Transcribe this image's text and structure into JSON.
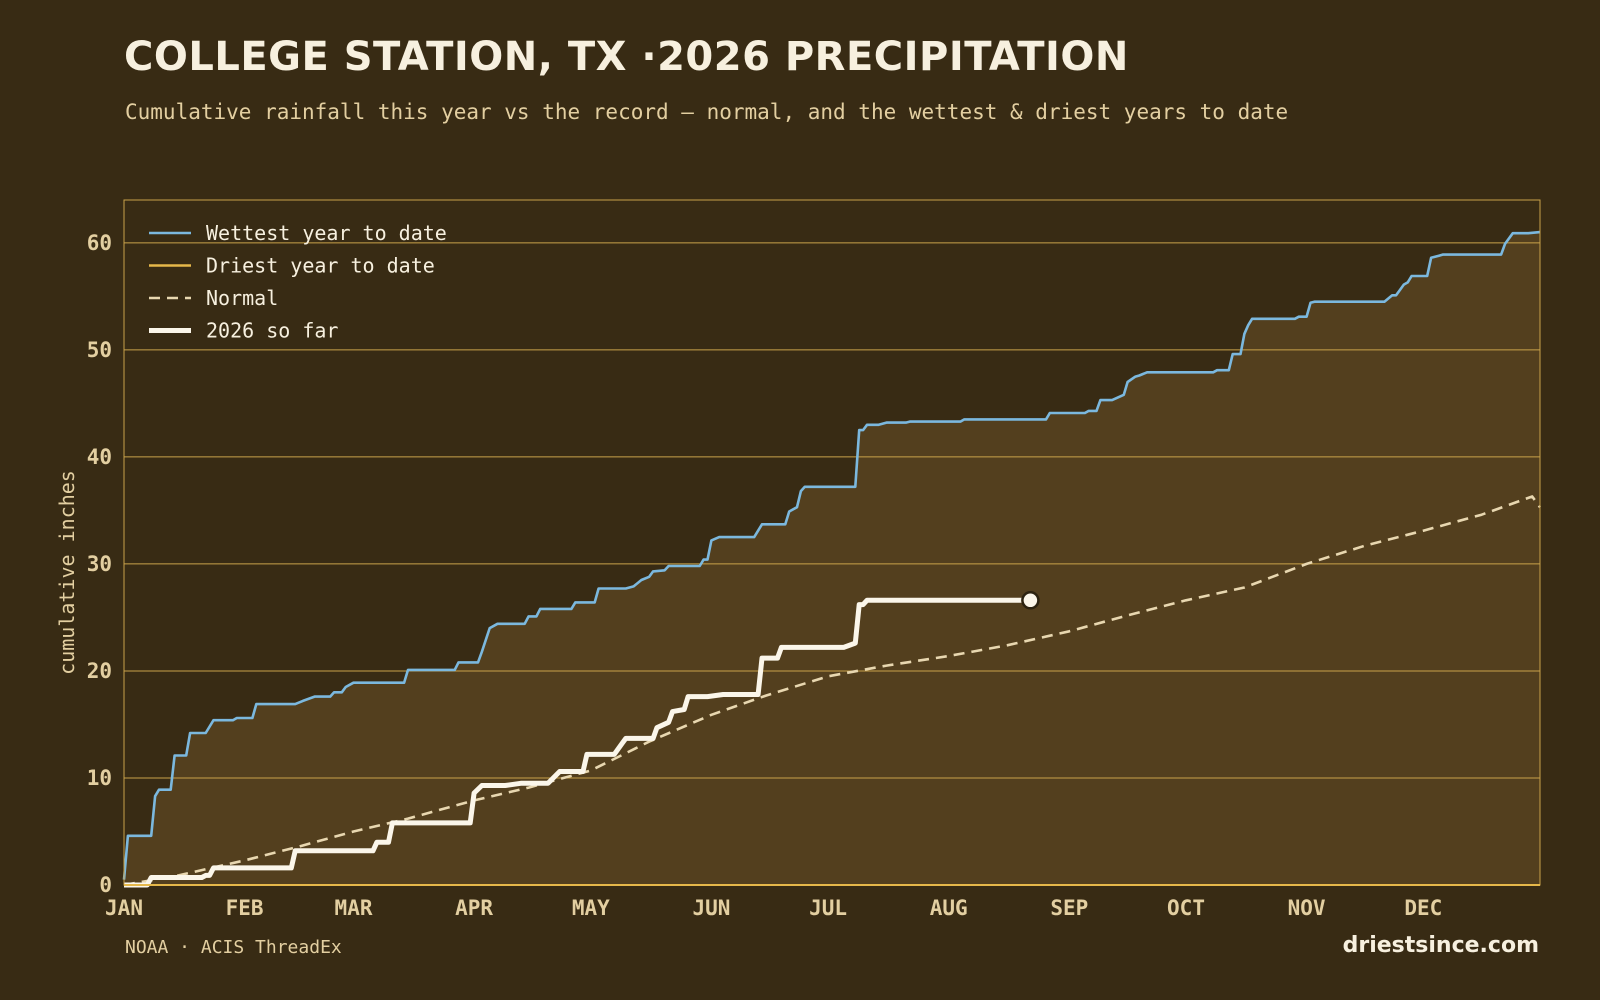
{
  "header": {
    "title": "COLLEGE STATION, TX ·2026 PRECIPITATION",
    "subtitle": "Cumulative rainfall this year vs the record — normal, and the wettest & driest years to date"
  },
  "footer": {
    "source": "NOAA · ACIS ThreadEx",
    "brand": "driestsince.com"
  },
  "colors": {
    "background": "#382b14",
    "plot_fill": "#533f1e",
    "grid": "#c9a24a",
    "axis_text": "#e3cfa1",
    "wettest": "#7bb8de",
    "driest": "#e6b84a",
    "normal": "#e8d7b0",
    "current": "#fbf6ea"
  },
  "chart_data": {
    "type": "line",
    "title": "COLLEGE STATION, TX ·2026 PRECIPITATION",
    "ylabel": "cumulative inches",
    "xlabel": "",
    "x_unit": "day of year",
    "xlim": [
      1,
      365
    ],
    "ylim": [
      0,
      64
    ],
    "yticks": [
      0,
      10,
      20,
      30,
      40,
      50,
      60
    ],
    "month_ticks": [
      {
        "label": "JAN",
        "day": 1
      },
      {
        "label": "FEB",
        "day": 32
      },
      {
        "label": "MAR",
        "day": 60
      },
      {
        "label": "APR",
        "day": 91
      },
      {
        "label": "MAY",
        "day": 121
      },
      {
        "label": "JUN",
        "day": 152
      },
      {
        "label": "JUL",
        "day": 182
      },
      {
        "label": "AUG",
        "day": 213
      },
      {
        "label": "SEP",
        "day": 244
      },
      {
        "label": "OCT",
        "day": 274
      },
      {
        "label": "NOV",
        "day": 305
      },
      {
        "label": "DEC",
        "day": 335
      }
    ],
    "grid": true,
    "legend_position": "top-left",
    "series": [
      {
        "name": "Wettest year to date",
        "style": "solid",
        "fill_below": true,
        "points": [
          [
            1,
            0.5
          ],
          [
            2,
            4.6
          ],
          [
            8,
            4.6
          ],
          [
            9,
            8.3
          ],
          [
            10,
            8.9
          ],
          [
            13,
            8.9
          ],
          [
            14,
            12.1
          ],
          [
            17,
            12.1
          ],
          [
            18,
            14.2
          ],
          [
            22,
            14.2
          ],
          [
            24,
            15.4
          ],
          [
            29,
            15.4
          ],
          [
            30,
            15.6
          ],
          [
            34,
            15.6
          ],
          [
            35,
            16.9
          ],
          [
            45,
            16.9
          ],
          [
            47,
            17.2
          ],
          [
            50,
            17.6
          ],
          [
            54,
            17.6
          ],
          [
            55,
            18.0
          ],
          [
            57,
            18.0
          ],
          [
            58,
            18.5
          ],
          [
            60,
            18.9
          ],
          [
            73,
            18.9
          ],
          [
            74,
            20.1
          ],
          [
            86,
            20.1
          ],
          [
            87,
            20.8
          ],
          [
            92,
            20.8
          ],
          [
            93,
            21.8
          ],
          [
            95,
            24.0
          ],
          [
            97,
            24.4
          ],
          [
            104,
            24.4
          ],
          [
            105,
            25.1
          ],
          [
            107,
            25.1
          ],
          [
            108,
            25.8
          ],
          [
            116,
            25.8
          ],
          [
            117,
            26.4
          ],
          [
            122,
            26.4
          ],
          [
            123,
            27.7
          ],
          [
            130,
            27.7
          ],
          [
            132,
            27.9
          ],
          [
            134,
            28.5
          ],
          [
            136,
            28.8
          ],
          [
            137,
            29.3
          ],
          [
            140,
            29.4
          ],
          [
            141,
            29.8
          ],
          [
            145,
            29.8
          ],
          [
            149,
            29.8
          ],
          [
            150,
            30.4
          ],
          [
            151,
            30.4
          ],
          [
            152,
            32.2
          ],
          [
            154,
            32.5
          ],
          [
            163,
            32.5
          ],
          [
            165,
            33.7
          ],
          [
            171,
            33.7
          ],
          [
            172,
            34.9
          ],
          [
            174,
            35.3
          ],
          [
            175,
            36.8
          ],
          [
            176,
            37.2
          ],
          [
            189,
            37.2
          ],
          [
            190,
            42.5
          ],
          [
            191,
            42.5
          ],
          [
            192,
            43.0
          ],
          [
            195,
            43.0
          ],
          [
            197,
            43.2
          ],
          [
            202,
            43.2
          ],
          [
            203,
            43.3
          ],
          [
            216,
            43.3
          ],
          [
            217,
            43.5
          ],
          [
            238,
            43.5
          ],
          [
            239,
            44.1
          ],
          [
            248,
            44.1
          ],
          [
            249,
            44.3
          ],
          [
            251,
            44.3
          ],
          [
            252,
            45.3
          ],
          [
            255,
            45.3
          ],
          [
            258,
            45.8
          ],
          [
            259,
            47.0
          ],
          [
            261,
            47.5
          ],
          [
            262,
            47.6
          ],
          [
            264,
            47.9
          ],
          [
            281,
            47.9
          ],
          [
            282,
            48.1
          ],
          [
            285,
            48.1
          ],
          [
            286,
            49.6
          ],
          [
            288,
            49.6
          ],
          [
            289,
            51.5
          ],
          [
            290,
            52.3
          ],
          [
            291,
            52.9
          ],
          [
            302,
            52.9
          ],
          [
            303,
            53.1
          ],
          [
            305,
            53.1
          ],
          [
            306,
            54.4
          ],
          [
            307,
            54.5
          ],
          [
            325,
            54.5
          ],
          [
            327,
            55.1
          ],
          [
            328,
            55.1
          ],
          [
            330,
            56.1
          ],
          [
            331,
            56.3
          ],
          [
            332,
            56.9
          ],
          [
            336,
            56.9
          ],
          [
            337,
            58.6
          ],
          [
            339,
            58.8
          ],
          [
            340,
            58.9
          ],
          [
            355,
            58.9
          ],
          [
            356,
            59.9
          ],
          [
            358,
            60.9
          ],
          [
            362,
            60.9
          ],
          [
            365,
            61.0
          ]
        ]
      },
      {
        "name": "Driest year to date",
        "style": "solid",
        "points": []
      },
      {
        "name": "Normal",
        "style": "dashed",
        "points": [
          [
            1,
            0.0
          ],
          [
            15,
            0.9
          ],
          [
            32,
            2.3
          ],
          [
            46,
            3.6
          ],
          [
            60,
            5.0
          ],
          [
            74,
            6.2
          ],
          [
            91,
            7.9
          ],
          [
            105,
            9.1
          ],
          [
            121,
            10.7
          ],
          [
            136,
            13.4
          ],
          [
            152,
            15.9
          ],
          [
            166,
            17.7
          ],
          [
            182,
            19.5
          ],
          [
            197,
            20.5
          ],
          [
            213,
            21.4
          ],
          [
            228,
            22.4
          ],
          [
            244,
            23.7
          ],
          [
            258,
            25.1
          ],
          [
            274,
            26.6
          ],
          [
            289,
            27.8
          ],
          [
            305,
            30.0
          ],
          [
            320,
            31.7
          ],
          [
            335,
            33.1
          ],
          [
            350,
            34.6
          ],
          [
            363,
            36.3
          ],
          [
            365,
            35.3
          ]
        ]
      },
      {
        "name": "2026 so far",
        "style": "solid-thick",
        "end_marker": true,
        "points": [
          [
            1,
            0.0
          ],
          [
            7,
            0.0
          ],
          [
            8,
            0.7
          ],
          [
            21,
            0.7
          ],
          [
            22,
            0.9
          ],
          [
            23,
            0.9
          ],
          [
            24,
            1.6
          ],
          [
            42,
            1.6
          ],
          [
            44,
            1.6
          ],
          [
            45,
            3.2
          ],
          [
            65,
            3.2
          ],
          [
            66,
            4.0
          ],
          [
            69,
            4.0
          ],
          [
            70,
            5.8
          ],
          [
            90,
            5.8
          ],
          [
            91,
            8.6
          ],
          [
            93,
            9.3
          ],
          [
            99,
            9.3
          ],
          [
            103,
            9.5
          ],
          [
            110,
            9.5
          ],
          [
            113,
            10.6
          ],
          [
            119,
            10.6
          ],
          [
            120,
            12.2
          ],
          [
            127,
            12.2
          ],
          [
            129,
            13.2
          ],
          [
            130,
            13.7
          ],
          [
            137,
            13.7
          ],
          [
            138,
            14.7
          ],
          [
            141,
            15.2
          ],
          [
            142,
            16.2
          ],
          [
            145,
            16.4
          ],
          [
            146,
            17.6
          ],
          [
            151,
            17.6
          ],
          [
            155,
            17.8
          ],
          [
            164,
            17.8
          ],
          [
            165,
            21.2
          ],
          [
            169,
            21.2
          ],
          [
            170,
            22.2
          ],
          [
            186,
            22.2
          ],
          [
            189,
            22.6
          ],
          [
            190,
            26.2
          ],
          [
            191,
            26.2
          ],
          [
            192,
            26.6
          ],
          [
            203,
            26.6
          ],
          [
            234,
            26.6
          ]
        ]
      }
    ]
  }
}
